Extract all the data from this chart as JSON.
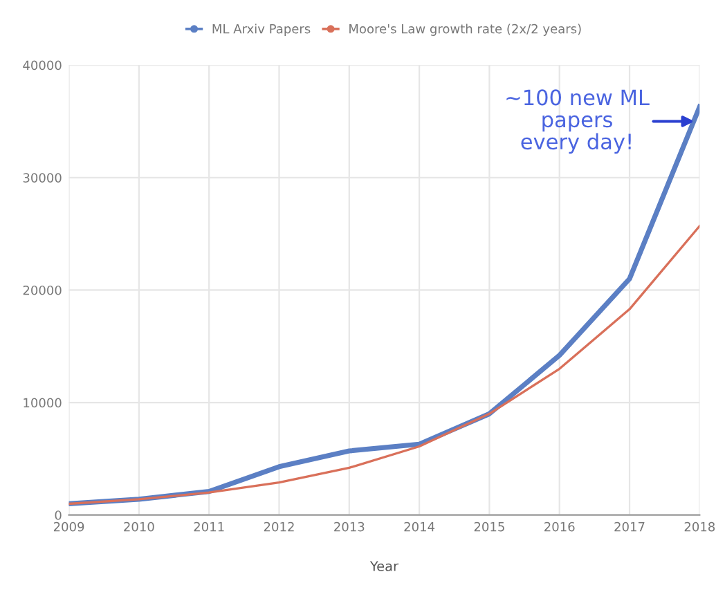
{
  "chart_data": {
    "type": "line",
    "xlabel": "Year",
    "x": [
      2009,
      2010,
      2011,
      2012,
      2013,
      2014,
      2015,
      2016,
      2017,
      2018
    ],
    "series": [
      {
        "name": "ML Arxiv Papers",
        "color": "#5b7fc4",
        "values": [
          1000,
          1400,
          2100,
          4300,
          5700,
          6300,
          9000,
          14200,
          21000,
          36300
        ]
      },
      {
        "name": "Moore's Law growth rate (2x/2 years)",
        "color": "#d9705a",
        "values": [
          1000,
          1400,
          2000,
          2900,
          4200,
          6100,
          9000,
          13000,
          18300,
          25700
        ]
      }
    ],
    "xlim": [
      2009,
      2018
    ],
    "xticks": [
      2009,
      2010,
      2011,
      2012,
      2013,
      2014,
      2015,
      2016,
      2017,
      2018
    ],
    "ylim": [
      0,
      40000
    ],
    "yticks": [
      0,
      10000,
      20000,
      30000,
      40000
    ],
    "grid": true,
    "legend": "top",
    "marker": "none",
    "line_style": "solid",
    "annotations": [
      {
        "text": "~100 new ML\npapers\nevery day!",
        "x": 2018,
        "y": 35000
      }
    ]
  }
}
